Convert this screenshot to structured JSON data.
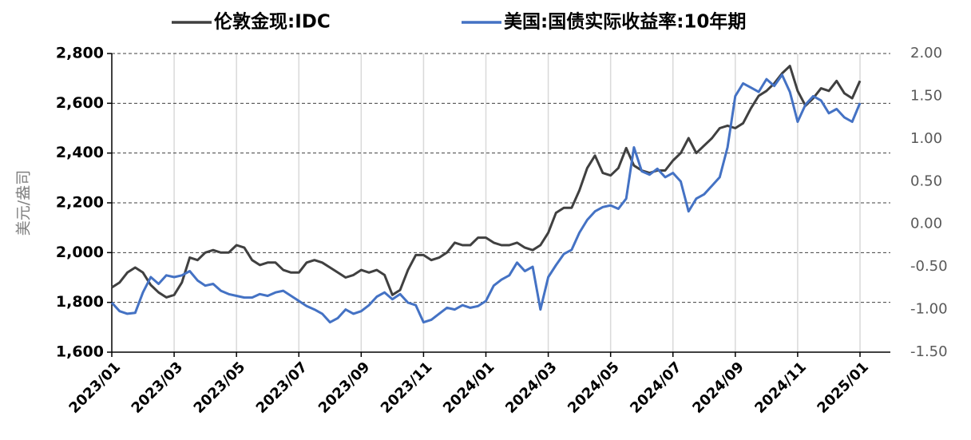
{
  "chart_data": {
    "type": "line",
    "y_label": "美元/盎司",
    "categories": [
      "2023/01",
      null,
      null,
      null,
      null,
      null,
      null,
      null,
      "2023/03",
      null,
      null,
      null,
      null,
      null,
      null,
      null,
      "2023/05",
      null,
      null,
      null,
      null,
      null,
      null,
      null,
      "2023/07",
      null,
      null,
      null,
      null,
      null,
      null,
      null,
      "2023/09",
      null,
      null,
      null,
      null,
      null,
      null,
      null,
      "2023/11",
      null,
      null,
      null,
      null,
      null,
      null,
      null,
      "2024/01",
      null,
      null,
      null,
      null,
      null,
      null,
      null,
      "2024/03",
      null,
      null,
      null,
      null,
      null,
      null,
      null,
      "2024/05",
      null,
      null,
      null,
      null,
      null,
      null,
      null,
      "2024/07",
      null,
      null,
      null,
      null,
      null,
      null,
      null,
      "2024/09",
      null,
      null,
      null,
      null,
      null,
      null,
      null,
      "2024/11",
      null,
      null,
      null,
      null,
      null,
      null,
      null,
      "2025/01"
    ],
    "series": [
      {
        "name": "伦敦金现:IDC",
        "color": "#404040",
        "axis": "y",
        "values": [
          1860,
          1880,
          1920,
          1940,
          1920,
          1870,
          1840,
          1820,
          1830,
          1880,
          1980,
          1970,
          2000,
          2010,
          2000,
          2000,
          2030,
          2020,
          1970,
          1950,
          1960,
          1960,
          1930,
          1920,
          1920,
          1960,
          1970,
          1960,
          1940,
          1920,
          1900,
          1910,
          1930,
          1920,
          1930,
          1910,
          1830,
          1850,
          1930,
          1990,
          1990,
          1970,
          1980,
          2000,
          2040,
          2030,
          2030,
          2060,
          2060,
          2040,
          2030,
          2030,
          2040,
          2020,
          2010,
          2030,
          2080,
          2160,
          2180,
          2180,
          2250,
          2340,
          2390,
          2320,
          2310,
          2340,
          2420,
          2350,
          2330,
          2320,
          2330,
          2330,
          2370,
          2400,
          2460,
          2400,
          2430,
          2460,
          2500,
          2510,
          2500,
          2520,
          2580,
          2630,
          2650,
          2680,
          2720,
          2750,
          2650,
          2590,
          2620,
          2660,
          2650,
          2690,
          2640,
          2620,
          2690
        ]
      },
      {
        "name": "美国:国债实际收益率:10年期",
        "color": "#4472c4",
        "axis": "y2",
        "values": [
          -0.92,
          -1.02,
          -1.05,
          -1.04,
          -0.8,
          -0.62,
          -0.7,
          -0.6,
          -0.62,
          -0.6,
          -0.55,
          -0.66,
          -0.72,
          -0.7,
          -0.78,
          -0.82,
          -0.84,
          -0.86,
          -0.86,
          -0.82,
          -0.84,
          -0.8,
          -0.78,
          -0.84,
          -0.9,
          -0.96,
          -1.0,
          -1.05,
          -1.15,
          -1.1,
          -1.0,
          -1.05,
          -1.02,
          -0.95,
          -0.85,
          -0.8,
          -0.88,
          -0.82,
          -0.92,
          -0.95,
          -1.15,
          -1.12,
          -1.05,
          -0.98,
          -1.0,
          -0.95,
          -0.98,
          -0.96,
          -0.9,
          -0.72,
          -0.65,
          -0.6,
          -0.45,
          -0.55,
          -0.5,
          -1.0,
          -0.62,
          -0.48,
          -0.35,
          -0.3,
          -0.1,
          0.05,
          0.15,
          0.2,
          0.22,
          0.18,
          0.3,
          0.9,
          0.62,
          0.58,
          0.65,
          0.55,
          0.6,
          0.5,
          0.15,
          0.3,
          0.35,
          0.45,
          0.55,
          0.9,
          1.5,
          1.65,
          1.6,
          1.55,
          1.7,
          1.62,
          1.75,
          1.55,
          1.2,
          1.4,
          1.5,
          1.45,
          1.3,
          1.35,
          1.25,
          1.2,
          1.42
        ]
      }
    ],
    "ylim": [
      1600,
      2800
    ],
    "yticks": [
      {
        "value": 1600,
        "label": "1,600"
      },
      {
        "value": 1800,
        "label": "1,800"
      },
      {
        "value": 2000,
        "label": "2,000"
      },
      {
        "value": 2200,
        "label": "2,200"
      },
      {
        "value": 2400,
        "label": "2,400"
      },
      {
        "value": 2600,
        "label": "2,600"
      },
      {
        "value": 2800,
        "label": "2,800"
      }
    ],
    "y2lim": [
      -1.5,
      2.0
    ],
    "y2ticks": [
      {
        "value": -1.5,
        "label": "-1.50"
      },
      {
        "value": -1.0,
        "label": "-1.00"
      },
      {
        "value": -0.5,
        "label": "-0.50"
      },
      {
        "value": 0,
        "label": "0.00"
      },
      {
        "value": 0.5,
        "label": "0.50"
      },
      {
        "value": 1.0,
        "label": "1.00"
      },
      {
        "value": 1.5,
        "label": "1.50"
      },
      {
        "value": 2.0,
        "label": "2.00"
      }
    ],
    "grid": true
  }
}
